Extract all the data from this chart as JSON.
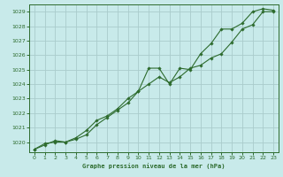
{
  "title": "Graphe pression niveau de la mer (hPa)",
  "bg_color": "#c8eaea",
  "grid_color": "#aacccc",
  "line_color": "#2d6b2d",
  "xlim": [
    -0.5,
    23.5
  ],
  "ylim": [
    1019.3,
    1029.5
  ],
  "xticks": [
    0,
    1,
    2,
    3,
    4,
    5,
    6,
    7,
    8,
    9,
    10,
    11,
    12,
    13,
    14,
    15,
    16,
    17,
    18,
    19,
    20,
    21,
    22,
    23
  ],
  "yticks": [
    1020,
    1021,
    1022,
    1023,
    1024,
    1025,
    1026,
    1027,
    1028,
    1029
  ],
  "series1_x": [
    0,
    1,
    2,
    3,
    4,
    5,
    6,
    7,
    8,
    9,
    10,
    11,
    12,
    13,
    14,
    15,
    16,
    17,
    18,
    19,
    20,
    21,
    22,
    23
  ],
  "series1_y": [
    1019.5,
    1019.8,
    1020.1,
    1020.0,
    1020.2,
    1020.5,
    1021.2,
    1021.7,
    1022.2,
    1022.7,
    1023.5,
    1025.1,
    1025.1,
    1024.0,
    1025.1,
    1025.0,
    1026.1,
    1026.8,
    1027.8,
    1027.8,
    1028.2,
    1029.0,
    1029.2,
    1029.1
  ],
  "series2_x": [
    0,
    1,
    2,
    3,
    4,
    5,
    6,
    7,
    8,
    9,
    10,
    11,
    12,
    13,
    14,
    15,
    16,
    17,
    18,
    19,
    20,
    21,
    22,
    23
  ],
  "series2_y": [
    1019.5,
    1019.9,
    1020.0,
    1020.0,
    1020.3,
    1020.8,
    1021.5,
    1021.8,
    1022.3,
    1023.0,
    1023.5,
    1024.0,
    1024.5,
    1024.1,
    1024.5,
    1025.1,
    1025.3,
    1025.8,
    1026.1,
    1026.9,
    1027.8,
    1028.1,
    1029.0,
    1029.0
  ],
  "fig_width": 3.2,
  "fig_height": 2.0,
  "dpi": 100
}
